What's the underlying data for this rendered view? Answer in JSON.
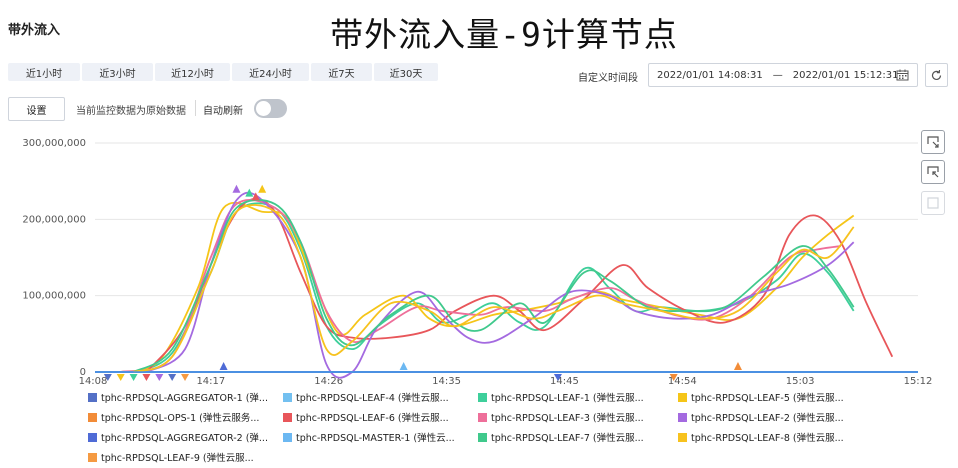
{
  "panel": {
    "title": "带外流入"
  },
  "big_title": "带外流入量-9计算节点",
  "time_buttons": [
    "近1小时",
    "近3小时",
    "近12小时",
    "近24小时",
    "近7天",
    "近30天"
  ],
  "custom_range": {
    "label": "自定义时间段",
    "start": "2022/01/01 14:08:31",
    "separator": "—",
    "end": "2022/01/01 15:12:31"
  },
  "toolbar": {
    "settings_label": "设置",
    "source_text": "当前监控数据为原始数据",
    "auto_refresh_label": "自动刷新",
    "auto_refresh_on": false
  },
  "colors": {
    "axis_line": "#4a90e2",
    "grid": "#e6e6e6",
    "toggle_off": "#bfc4cc"
  },
  "chart_data": {
    "type": "line",
    "y_ticks": [
      "300,000,000",
      "200,000,000",
      "100,000,000",
      "0"
    ],
    "ylim": [
      0,
      300000000
    ],
    "x_ticks": [
      "14:08",
      "14:17",
      "14:26",
      "14:35",
      "14:45",
      "14:54",
      "15:03",
      "15:12"
    ],
    "series": [
      {
        "name": "tphc-RPDSQL-AGGREGATOR-1 (弹...",
        "color": "#5470c6",
        "values": [
          [
            0,
            0
          ],
          [
            64,
            0
          ]
        ]
      },
      {
        "name": "tphc-RPDSQL-LEAF-4 (弹性云服...",
        "color": "#73c0f0",
        "values": [
          [
            0,
            0
          ],
          [
            64,
            0
          ]
        ]
      },
      {
        "name": "tphc-RPDSQL-LEAF-1 (弹性云服...",
        "color": "#3ecf9b",
        "values": [
          [
            3,
            0
          ],
          [
            6,
            25000000
          ],
          [
            9,
            130000000
          ],
          [
            11,
            210000000
          ],
          [
            14,
            215000000
          ],
          [
            16,
            160000000
          ],
          [
            18,
            60000000
          ],
          [
            20,
            30000000
          ],
          [
            22,
            60000000
          ],
          [
            25,
            90000000
          ],
          [
            27,
            65000000
          ],
          [
            29,
            75000000
          ],
          [
            31,
            90000000
          ],
          [
            33,
            65000000
          ],
          [
            35,
            60000000
          ],
          [
            38,
            135000000
          ],
          [
            40,
            110000000
          ],
          [
            42,
            80000000
          ],
          [
            44,
            85000000
          ],
          [
            47,
            80000000
          ],
          [
            50,
            90000000
          ],
          [
            53,
            120000000
          ],
          [
            55,
            155000000
          ],
          [
            57,
            130000000
          ],
          [
            59,
            80000000
          ]
        ]
      },
      {
        "name": "tphc-RPDSQL-LEAF-5 (弹性云服...",
        "color": "#f5c518",
        "values": [
          [
            2,
            0
          ],
          [
            5,
            15000000
          ],
          [
            8,
            110000000
          ],
          [
            10,
            215000000
          ],
          [
            13,
            210000000
          ],
          [
            15,
            200000000
          ],
          [
            17,
            120000000
          ],
          [
            19,
            50000000
          ],
          [
            21,
            75000000
          ],
          [
            24,
            100000000
          ],
          [
            26,
            70000000
          ],
          [
            28,
            60000000
          ],
          [
            31,
            75000000
          ],
          [
            33,
            80000000
          ],
          [
            36,
            90000000
          ],
          [
            39,
            105000000
          ],
          [
            41,
            95000000
          ],
          [
            44,
            85000000
          ],
          [
            47,
            75000000
          ],
          [
            50,
            70000000
          ],
          [
            53,
            110000000
          ],
          [
            55,
            150000000
          ],
          [
            57,
            180000000
          ],
          [
            59,
            205000000
          ]
        ]
      },
      {
        "name": "tphc-RPDSQL-OPS-1 (弹性云服务...",
        "color": "#f28c38",
        "values": [
          [
            0,
            0
          ],
          [
            64,
            0
          ]
        ]
      },
      {
        "name": "tphc-RPDSQL-LEAF-6 (弹性云服...",
        "color": "#e8565a",
        "values": [
          [
            4,
            0
          ],
          [
            7,
            60000000
          ],
          [
            10,
            180000000
          ],
          [
            12,
            225000000
          ],
          [
            14,
            210000000
          ],
          [
            16,
            130000000
          ],
          [
            18,
            60000000
          ],
          [
            20,
            45000000
          ],
          [
            23,
            45000000
          ],
          [
            26,
            55000000
          ],
          [
            28,
            80000000
          ],
          [
            31,
            100000000
          ],
          [
            33,
            80000000
          ],
          [
            35,
            55000000
          ],
          [
            38,
            95000000
          ],
          [
            41,
            140000000
          ],
          [
            43,
            110000000
          ],
          [
            46,
            80000000
          ],
          [
            49,
            65000000
          ],
          [
            52,
            100000000
          ],
          [
            54,
            180000000
          ],
          [
            56,
            205000000
          ],
          [
            58,
            170000000
          ],
          [
            60,
            90000000
          ],
          [
            62,
            20000000
          ]
        ]
      },
      {
        "name": "tphc-RPDSQL-LEAF-3 (弹性云服...",
        "color": "#ee6f9a",
        "values": [
          [
            2,
            0
          ],
          [
            6,
            20000000
          ],
          [
            9,
            150000000
          ],
          [
            11,
            220000000
          ],
          [
            14,
            215000000
          ],
          [
            16,
            170000000
          ],
          [
            18,
            80000000
          ],
          [
            20,
            40000000
          ],
          [
            22,
            55000000
          ],
          [
            25,
            85000000
          ],
          [
            27,
            80000000
          ],
          [
            30,
            75000000
          ],
          [
            32,
            85000000
          ],
          [
            35,
            80000000
          ],
          [
            37,
            95000000
          ],
          [
            40,
            110000000
          ],
          [
            42,
            95000000
          ],
          [
            45,
            75000000
          ],
          [
            48,
            70000000
          ],
          [
            51,
            100000000
          ],
          [
            54,
            150000000
          ],
          [
            56,
            160000000
          ],
          [
            58,
            165000000
          ]
        ]
      },
      {
        "name": "tphc-RPDSQL-LEAF-2 (弹性云服...",
        "color": "#a46ae0",
        "values": [
          [
            4,
            0
          ],
          [
            7,
            30000000
          ],
          [
            9,
            140000000
          ],
          [
            11,
            225000000
          ],
          [
            13,
            225000000
          ],
          [
            16,
            150000000
          ],
          [
            18,
            10000000
          ],
          [
            20,
            0
          ],
          [
            22,
            60000000
          ],
          [
            25,
            105000000
          ],
          [
            27,
            75000000
          ],
          [
            29,
            45000000
          ],
          [
            31,
            40000000
          ],
          [
            34,
            70000000
          ],
          [
            37,
            105000000
          ],
          [
            40,
            100000000
          ],
          [
            42,
            80000000
          ],
          [
            45,
            70000000
          ],
          [
            48,
            75000000
          ],
          [
            51,
            100000000
          ],
          [
            54,
            115000000
          ],
          [
            57,
            140000000
          ],
          [
            59,
            170000000
          ]
        ]
      },
      {
        "name": "tphc-RPDSQL-AGGREGATOR-2 (弹...",
        "color": "#4f6bd6",
        "values": [
          [
            0,
            0
          ],
          [
            64,
            0
          ]
        ]
      },
      {
        "name": "tphc-RPDSQL-MASTER-1 (弹性云...",
        "color": "#6cb8f2",
        "values": [
          [
            0,
            0
          ],
          [
            64,
            0
          ]
        ]
      },
      {
        "name": "tphc-RPDSQL-LEAF-7 (弹性云服...",
        "color": "#40c98c",
        "values": [
          [
            3,
            0
          ],
          [
            6,
            30000000
          ],
          [
            9,
            140000000
          ],
          [
            11,
            215000000
          ],
          [
            14,
            220000000
          ],
          [
            16,
            170000000
          ],
          [
            18,
            70000000
          ],
          [
            20,
            35000000
          ],
          [
            23,
            75000000
          ],
          [
            26,
            100000000
          ],
          [
            28,
            65000000
          ],
          [
            30,
            55000000
          ],
          [
            33,
            90000000
          ],
          [
            35,
            65000000
          ],
          [
            38,
            130000000
          ],
          [
            40,
            120000000
          ],
          [
            43,
            85000000
          ],
          [
            46,
            80000000
          ],
          [
            49,
            85000000
          ],
          [
            52,
            125000000
          ],
          [
            55,
            165000000
          ],
          [
            57,
            135000000
          ],
          [
            59,
            85000000
          ]
        ]
      },
      {
        "name": "tphc-RPDSQL-LEAF-8 (弹性云服...",
        "color": "#f7c21e",
        "values": [
          [
            3,
            0
          ],
          [
            6,
            20000000
          ],
          [
            9,
            130000000
          ],
          [
            11,
            210000000
          ],
          [
            14,
            210000000
          ],
          [
            16,
            150000000
          ],
          [
            18,
            30000000
          ],
          [
            20,
            40000000
          ],
          [
            23,
            90000000
          ],
          [
            26,
            80000000
          ],
          [
            28,
            60000000
          ],
          [
            31,
            85000000
          ],
          [
            34,
            70000000
          ],
          [
            36,
            80000000
          ],
          [
            39,
            100000000
          ],
          [
            41,
            90000000
          ],
          [
            44,
            80000000
          ],
          [
            47,
            70000000
          ],
          [
            50,
            80000000
          ],
          [
            53,
            130000000
          ],
          [
            55,
            160000000
          ],
          [
            57,
            150000000
          ],
          [
            59,
            190000000
          ]
        ]
      },
      {
        "name": "tphc-RPDSQL-LEAF-9 (弹性云服...",
        "color": "#f59a42",
        "values": [
          [
            0,
            0
          ],
          [
            64,
            0
          ]
        ]
      }
    ],
    "legend_position": "bottom",
    "grid": true
  }
}
